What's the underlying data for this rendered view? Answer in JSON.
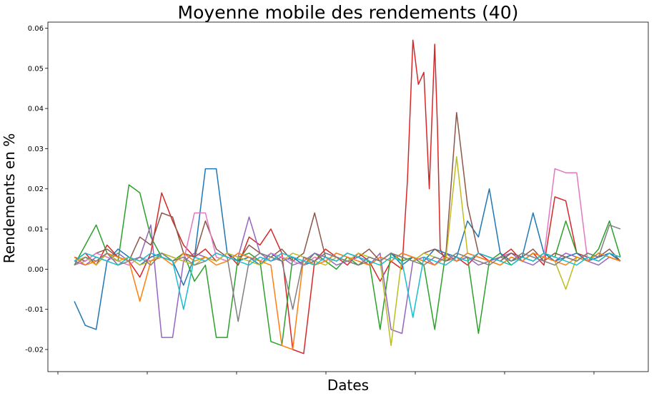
{
  "chart_data": {
    "type": "line",
    "title": "Moyenne mobile des rendements (40)",
    "xlabel": "Dates",
    "ylabel": "Rendements en %",
    "ylim": [
      -0.0255,
      0.0615
    ],
    "yticks": [
      "-0.02",
      "-0.01",
      "0.00",
      "0.01",
      "0.02",
      "0.03",
      "0.04",
      "0.05",
      "0.06"
    ],
    "xticks": [
      "",
      "",
      "",
      "",
      "",
      "",
      ""
    ],
    "xlim": [
      0,
      100
    ],
    "grid": false,
    "legend": "none",
    "colors": [
      "#1f77b4",
      "#ff7f0e",
      "#2ca02c",
      "#d62728",
      "#9467bd",
      "#8c564b",
      "#e377c2",
      "#7f7f7f",
      "#bcbd22",
      "#17becf"
    ],
    "series": [
      {
        "color": "#d62728",
        "x": [
          0,
          2,
          4,
          6,
          8,
          10,
          12,
          14,
          16,
          18,
          20,
          22,
          24,
          26,
          28,
          30,
          32,
          34,
          36,
          38,
          40,
          42,
          44,
          46,
          48,
          50,
          52,
          54,
          56,
          58,
          60,
          61,
          62,
          63,
          64,
          65,
          66,
          66.5,
          67,
          68,
          70,
          72,
          74,
          76,
          78,
          80,
          82,
          84,
          86,
          88,
          90,
          92,
          94,
          96,
          98,
          100
        ],
        "values": [
          0.002,
          0.004,
          0.001,
          0.006,
          0.003,
          0.002,
          -0.002,
          0.004,
          0.019,
          0.012,
          0.006,
          0.003,
          0.005,
          0.002,
          0.004,
          0.001,
          0.008,
          0.006,
          0.01,
          0.004,
          -0.02,
          -0.021,
          0.002,
          0.005,
          0.003,
          0.001,
          0.004,
          0.002,
          -0.003,
          0.002,
          0.0,
          0.022,
          0.057,
          0.046,
          0.049,
          0.02,
          0.056,
          0.035,
          0.005,
          0.002,
          0.003,
          0.001,
          0.004,
          0.002,
          0.003,
          0.005,
          0.002,
          0.004,
          0.001,
          0.018,
          0.017,
          0.004,
          0.003,
          0.002,
          0.004,
          0.002
        ]
      },
      {
        "color": "#2ca02c",
        "x": [
          0,
          2,
          4,
          6,
          8,
          10,
          12,
          14,
          16,
          18,
          20,
          22,
          24,
          26,
          28,
          30,
          32,
          34,
          36,
          38,
          40,
          42,
          44,
          46,
          48,
          50,
          52,
          54,
          56,
          58,
          60,
          62,
          64,
          66,
          68,
          70,
          72,
          74,
          76,
          78,
          80,
          82,
          84,
          86,
          88,
          90,
          92,
          94,
          96,
          98,
          100
        ],
        "values": [
          0.001,
          0.006,
          0.011,
          0.004,
          0.002,
          0.021,
          0.019,
          0.008,
          0.003,
          0.002,
          0.004,
          -0.003,
          0.001,
          -0.017,
          -0.017,
          0.003,
          0.004,
          0.002,
          -0.018,
          -0.019,
          0.003,
          0.001,
          0.004,
          0.002,
          0.0,
          0.003,
          0.001,
          0.002,
          -0.015,
          0.004,
          0.002,
          0.003,
          0.001,
          -0.015,
          0.004,
          0.002,
          0.003,
          -0.016,
          0.002,
          0.004,
          0.001,
          0.003,
          0.002,
          0.004,
          0.003,
          0.012,
          0.004,
          0.002,
          0.005,
          0.012,
          0.003
        ]
      },
      {
        "color": "#1f77b4",
        "x": [
          0,
          2,
          4,
          6,
          8,
          10,
          12,
          14,
          16,
          18,
          20,
          22,
          24,
          26,
          28,
          30,
          32,
          34,
          36,
          38,
          40,
          42,
          44,
          46,
          48,
          50,
          52,
          54,
          56,
          58,
          60,
          62,
          64,
          66,
          68,
          70,
          72,
          74,
          76,
          78,
          80,
          82,
          84,
          86,
          88,
          90,
          92,
          94,
          96,
          98,
          100
        ],
        "values": [
          -0.008,
          -0.014,
          -0.015,
          0.002,
          0.005,
          0.003,
          0.001,
          0.003,
          0.004,
          0.002,
          -0.004,
          0.003,
          0.025,
          0.025,
          0.004,
          0.002,
          0.003,
          0.001,
          0.004,
          0.002,
          0.003,
          0.001,
          0.002,
          0.004,
          0.003,
          0.002,
          0.001,
          0.003,
          0.002,
          0.004,
          0.001,
          0.003,
          0.002,
          0.005,
          0.004,
          0.003,
          0.012,
          0.008,
          0.02,
          0.004,
          0.002,
          0.003,
          0.014,
          0.004,
          0.002,
          0.003,
          0.004,
          0.002,
          0.003,
          0.004,
          0.002
        ]
      },
      {
        "color": "#9467bd",
        "x": [
          0,
          2,
          4,
          6,
          8,
          10,
          12,
          14,
          16,
          18,
          20,
          22,
          24,
          26,
          28,
          30,
          32,
          34,
          36,
          38,
          40,
          42,
          44,
          46,
          48,
          50,
          52,
          54,
          56,
          58,
          60,
          62,
          64,
          66,
          68,
          70,
          72,
          74,
          76,
          78,
          80,
          82,
          84,
          86,
          88,
          90,
          92,
          94,
          96,
          98,
          100
        ],
        "values": [
          0.002,
          0.001,
          0.003,
          0.002,
          0.004,
          0.002,
          0.003,
          0.011,
          -0.017,
          -0.017,
          0.002,
          0.004,
          0.003,
          0.002,
          0.004,
          0.003,
          0.013,
          0.004,
          0.002,
          0.003,
          0.001,
          0.002,
          0.004,
          0.003,
          0.001,
          0.002,
          0.003,
          0.001,
          0.004,
          -0.015,
          -0.016,
          0.002,
          0.003,
          0.001,
          0.004,
          0.002,
          0.003,
          0.001,
          0.002,
          0.003,
          0.004,
          0.002,
          0.001,
          0.003,
          0.002,
          0.004,
          0.003,
          0.002,
          0.001,
          0.003,
          0.002
        ]
      },
      {
        "color": "#8c564b",
        "x": [
          0,
          2,
          4,
          6,
          8,
          10,
          12,
          14,
          16,
          18,
          20,
          22,
          24,
          26,
          28,
          30,
          32,
          34,
          36,
          38,
          40,
          42,
          44,
          46,
          48,
          50,
          52,
          54,
          56,
          58,
          60,
          62,
          64,
          66,
          68,
          70,
          72,
          74,
          76,
          78,
          80,
          82,
          84,
          86,
          88,
          90,
          92,
          94,
          96,
          98,
          100
        ],
        "values": [
          0.003,
          0.002,
          0.004,
          0.005,
          0.003,
          0.002,
          0.008,
          0.006,
          0.014,
          0.013,
          0.004,
          0.003,
          0.012,
          0.005,
          0.003,
          0.002,
          0.006,
          0.004,
          0.003,
          0.005,
          0.002,
          0.004,
          0.014,
          0.003,
          0.002,
          0.004,
          0.003,
          0.005,
          0.002,
          0.004,
          0.003,
          0.002,
          0.004,
          0.005,
          0.003,
          0.039,
          0.016,
          0.004,
          0.003,
          0.002,
          0.004,
          0.003,
          0.005,
          0.002,
          0.004,
          0.003,
          0.002,
          0.004,
          0.003,
          0.005,
          0.002
        ]
      },
      {
        "color": "#e377c2",
        "x": [
          0,
          2,
          4,
          6,
          8,
          10,
          12,
          14,
          16,
          18,
          20,
          22,
          24,
          26,
          28,
          30,
          32,
          34,
          36,
          38,
          40,
          42,
          44,
          46,
          48,
          50,
          52,
          54,
          56,
          58,
          60,
          62,
          64,
          66,
          68,
          70,
          72,
          74,
          76,
          78,
          80,
          82,
          84,
          86,
          88,
          90,
          92,
          94,
          96,
          98,
          100
        ],
        "values": [
          0.001,
          0.002,
          0.004,
          0.003,
          0.002,
          0.001,
          0.003,
          0.002,
          0.004,
          0.003,
          0.002,
          0.014,
          0.014,
          0.003,
          0.002,
          0.004,
          0.003,
          0.002,
          0.004,
          0.003,
          0.002,
          0.001,
          0.003,
          0.002,
          0.004,
          0.003,
          0.002,
          0.001,
          0.003,
          0.002,
          0.004,
          0.003,
          0.002,
          0.001,
          0.003,
          0.002,
          0.004,
          0.003,
          0.002,
          0.001,
          0.003,
          0.002,
          0.004,
          0.003,
          0.025,
          0.024,
          0.024,
          0.002,
          0.004,
          0.003,
          0.002
        ]
      },
      {
        "color": "#bcbd22",
        "x": [
          0,
          2,
          4,
          6,
          8,
          10,
          12,
          14,
          16,
          18,
          20,
          22,
          24,
          26,
          28,
          30,
          32,
          34,
          36,
          38,
          40,
          42,
          44,
          46,
          48,
          50,
          52,
          54,
          56,
          58,
          60,
          62,
          64,
          66,
          68,
          70,
          72,
          74,
          76,
          78,
          80,
          82,
          84,
          86,
          88,
          90,
          92,
          94,
          96,
          98,
          100
        ],
        "values": [
          0.002,
          0.003,
          0.001,
          0.004,
          0.002,
          0.003,
          0.001,
          0.002,
          0.004,
          0.003,
          0.002,
          0.001,
          0.003,
          0.002,
          0.004,
          0.003,
          0.002,
          0.001,
          0.003,
          0.002,
          0.004,
          0.003,
          0.002,
          0.001,
          0.003,
          0.002,
          0.004,
          0.003,
          0.002,
          -0.019,
          0.003,
          0.002,
          0.004,
          0.003,
          0.002,
          0.028,
          0.004,
          0.003,
          0.002,
          0.001,
          0.003,
          0.002,
          0.004,
          0.003,
          0.002,
          -0.005,
          0.003,
          0.002,
          0.004,
          0.003,
          0.002
        ]
      },
      {
        "color": "#ff7f0e",
        "x": [
          0,
          2,
          4,
          6,
          8,
          10,
          12,
          14,
          16,
          18,
          20,
          22,
          24,
          26,
          28,
          30,
          32,
          34,
          36,
          38,
          40,
          42,
          44,
          46,
          48,
          50,
          52,
          54,
          56,
          58,
          60,
          62,
          64,
          66,
          68,
          70,
          72,
          74,
          76,
          78,
          80,
          82,
          84,
          86,
          88,
          90,
          92,
          94,
          96,
          98,
          100
        ],
        "values": [
          0.003,
          0.001,
          0.002,
          0.004,
          0.003,
          0.002,
          -0.008,
          0.002,
          0.003,
          0.001,
          0.004,
          0.002,
          0.003,
          0.001,
          0.002,
          0.004,
          0.003,
          0.002,
          0.001,
          -0.019,
          -0.02,
          0.003,
          0.001,
          0.002,
          0.004,
          0.003,
          0.002,
          0.001,
          0.003,
          0.002,
          0.004,
          0.003,
          0.002,
          0.001,
          0.003,
          0.002,
          0.004,
          0.003,
          0.002,
          0.001,
          0.003,
          0.002,
          0.004,
          0.003,
          0.002,
          0.001,
          0.003,
          0.002,
          0.004,
          0.003,
          0.002
        ]
      },
      {
        "color": "#7f7f7f",
        "x": [
          0,
          2,
          4,
          6,
          8,
          10,
          12,
          14,
          16,
          18,
          20,
          22,
          24,
          26,
          28,
          30,
          32,
          34,
          36,
          38,
          40,
          42,
          44,
          46,
          48,
          50,
          52,
          54,
          56,
          58,
          60,
          62,
          64,
          66,
          68,
          70,
          72,
          74,
          76,
          78,
          80,
          82,
          84,
          86,
          88,
          90,
          92,
          94,
          96,
          98,
          100
        ],
        "values": [
          0.001,
          0.003,
          0.002,
          0.004,
          0.001,
          0.002,
          0.003,
          0.001,
          0.004,
          0.002,
          0.003,
          0.001,
          0.002,
          0.004,
          0.003,
          -0.013,
          0.002,
          0.004,
          0.003,
          0.002,
          -0.01,
          0.003,
          0.002,
          0.004,
          0.003,
          0.002,
          0.001,
          0.003,
          0.002,
          0.004,
          0.003,
          0.002,
          0.001,
          0.003,
          0.002,
          0.004,
          0.003,
          0.002,
          0.001,
          0.003,
          0.002,
          0.004,
          0.003,
          0.002,
          0.001,
          0.003,
          0.002,
          0.004,
          0.003,
          0.011,
          0.01
        ]
      },
      {
        "color": "#17becf",
        "x": [
          0,
          2,
          4,
          6,
          8,
          10,
          12,
          14,
          16,
          18,
          20,
          22,
          24,
          26,
          28,
          30,
          32,
          34,
          36,
          38,
          40,
          42,
          44,
          46,
          48,
          50,
          52,
          54,
          56,
          58,
          60,
          62,
          64,
          66,
          68,
          70,
          72,
          74,
          76,
          78,
          80,
          82,
          84,
          86,
          88,
          90,
          92,
          94,
          96,
          98,
          100
        ],
        "values": [
          0.002,
          0.004,
          0.003,
          0.002,
          0.001,
          0.003,
          0.002,
          0.004,
          0.003,
          0.002,
          -0.01,
          0.003,
          0.002,
          0.004,
          0.003,
          0.002,
          0.001,
          0.003,
          0.002,
          0.004,
          0.003,
          0.002,
          0.001,
          0.003,
          0.002,
          0.004,
          0.003,
          0.002,
          0.001,
          0.003,
          0.002,
          -0.012,
          0.003,
          0.002,
          0.001,
          0.003,
          0.002,
          0.004,
          0.003,
          0.002,
          0.001,
          0.003,
          0.002,
          0.004,
          0.003,
          0.002,
          0.001,
          0.003,
          0.002,
          0.004,
          0.003
        ]
      }
    ]
  }
}
